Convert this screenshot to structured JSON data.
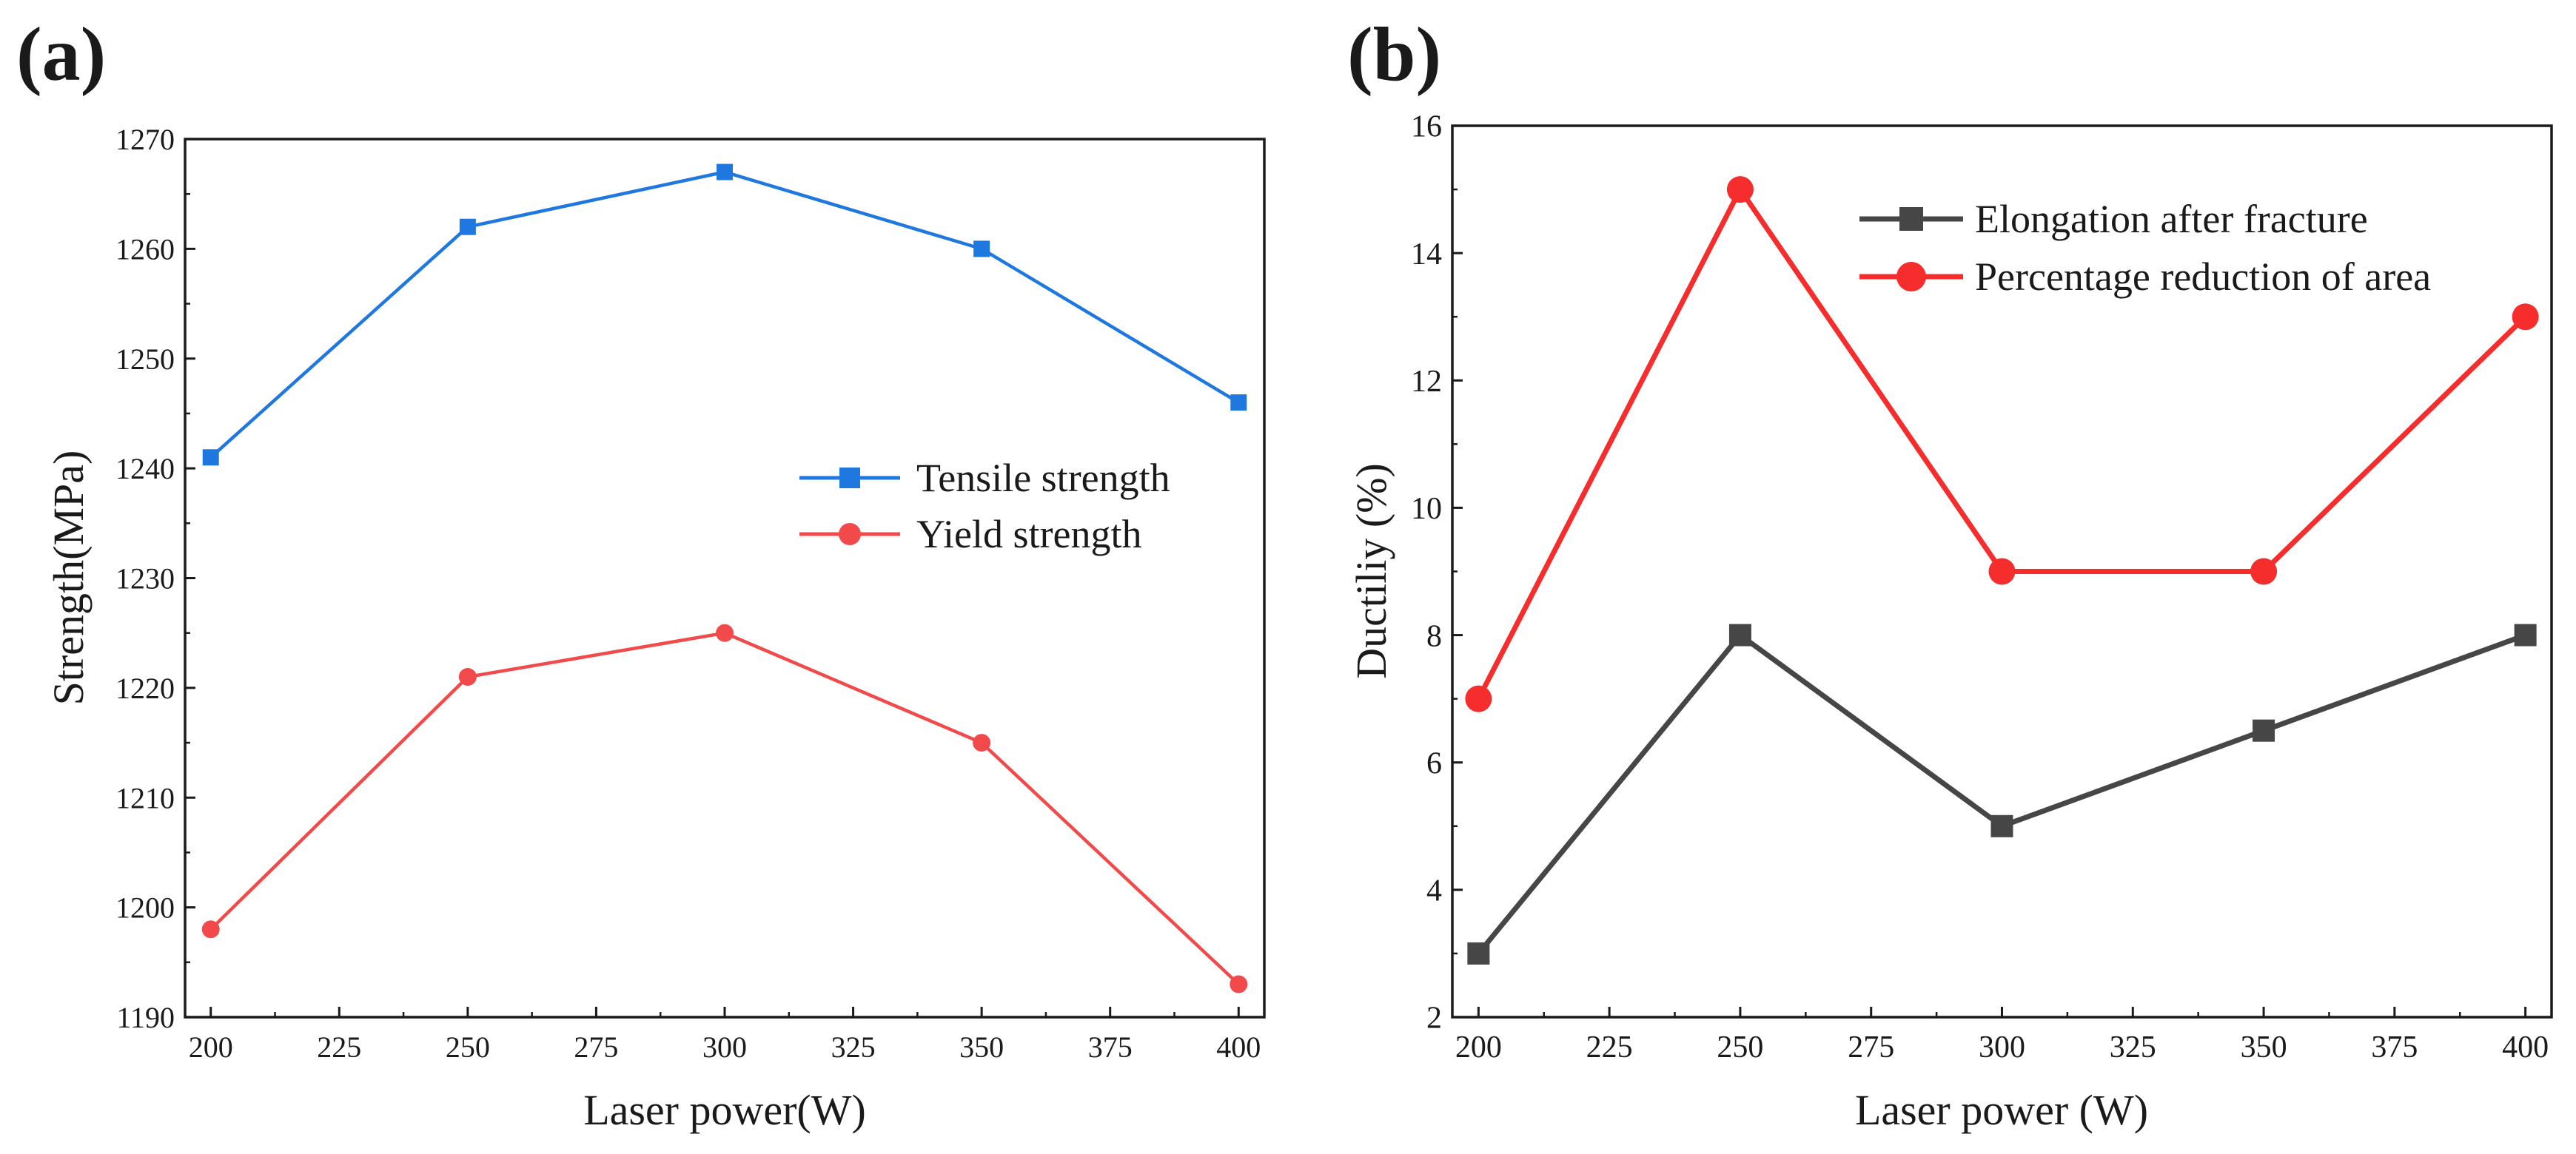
{
  "chart_data": [
    {
      "type": "line",
      "panel_label": "(a)",
      "title": "",
      "xlabel": "Laser power(W)",
      "ylabel": "Strength(MPa)",
      "x": [
        200,
        250,
        300,
        350,
        400
      ],
      "xlim": [
        195,
        405
      ],
      "ylim": [
        1190,
        1270
      ],
      "xticks": [
        200,
        225,
        250,
        275,
        300,
        325,
        350,
        375,
        400
      ],
      "yticks": [
        1190,
        1200,
        1210,
        1220,
        1230,
        1240,
        1250,
        1260,
        1270
      ],
      "grid": false,
      "legend_position": "center-right",
      "series": [
        {
          "name": "Tensile strength",
          "values": [
            1241,
            1262,
            1267,
            1260,
            1246
          ],
          "color": "#1f77e0",
          "marker": "square"
        },
        {
          "name": "Yield strength",
          "values": [
            1198,
            1221,
            1225,
            1215,
            1193
          ],
          "color": "#f24a4a",
          "marker": "circle"
        }
      ]
    },
    {
      "type": "line",
      "panel_label": "(b)",
      "title": "",
      "xlabel": "Laser power (W)",
      "ylabel": "Ductiliy (%)",
      "x": [
        200,
        250,
        300,
        350,
        400
      ],
      "xlim": [
        195,
        405
      ],
      "ylim": [
        2,
        16
      ],
      "xticks": [
        200,
        225,
        250,
        275,
        300,
        325,
        350,
        375,
        400
      ],
      "yticks": [
        2,
        4,
        6,
        8,
        10,
        12,
        14,
        16
      ],
      "grid": false,
      "legend_position": "top-right",
      "series": [
        {
          "name": "Elongation after fracture",
          "values": [
            3,
            8,
            5,
            6.5,
            8
          ],
          "color": "#464646",
          "marker": "square"
        },
        {
          "name": "Percentage reduction of area",
          "values": [
            7,
            15,
            9,
            9,
            13
          ],
          "color": "#f52d2d",
          "marker": "circle"
        }
      ]
    }
  ]
}
